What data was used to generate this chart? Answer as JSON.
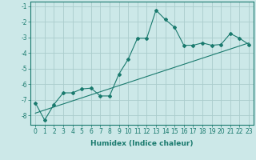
{
  "xlabel": "Humidex (Indice chaleur)",
  "xlim": [
    -0.5,
    23.5
  ],
  "ylim": [
    -8.6,
    -0.7
  ],
  "yticks": [
    -1,
    -2,
    -3,
    -4,
    -5,
    -6,
    -7,
    -8
  ],
  "xticks": [
    0,
    1,
    2,
    3,
    4,
    5,
    6,
    7,
    8,
    9,
    10,
    11,
    12,
    13,
    14,
    15,
    16,
    17,
    18,
    19,
    20,
    21,
    22,
    23
  ],
  "xtick_labels": [
    "0",
    "1",
    "2",
    "3",
    "4",
    "5",
    "6",
    "7",
    "8",
    "9",
    "10",
    "11",
    "12",
    "13",
    "14",
    "15",
    "16",
    "17",
    "18",
    "19",
    "20",
    "21",
    "22",
    "23"
  ],
  "curve_x": [
    0,
    1,
    2,
    3,
    4,
    5,
    6,
    7,
    8,
    9,
    10,
    11,
    12,
    13,
    14,
    15,
    16,
    17,
    18,
    19,
    20,
    21,
    22,
    23
  ],
  "curve_y": [
    -7.2,
    -8.3,
    -7.3,
    -6.55,
    -6.55,
    -6.3,
    -6.25,
    -6.75,
    -6.75,
    -5.35,
    -4.4,
    -3.05,
    -3.05,
    -1.25,
    -1.85,
    -2.35,
    -3.5,
    -3.5,
    -3.35,
    -3.5,
    -3.45,
    -2.75,
    -3.05,
    -3.45
  ],
  "line_x": [
    0,
    23
  ],
  "line_y": [
    -7.85,
    -3.35
  ],
  "color": "#1a7a6e",
  "bg_color": "#cce8e8",
  "grid_color": "#aacccc",
  "marker": "D",
  "marker_size": 2.0,
  "line_width": 0.8,
  "tick_fontsize": 5.5,
  "xlabel_fontsize": 6.5
}
